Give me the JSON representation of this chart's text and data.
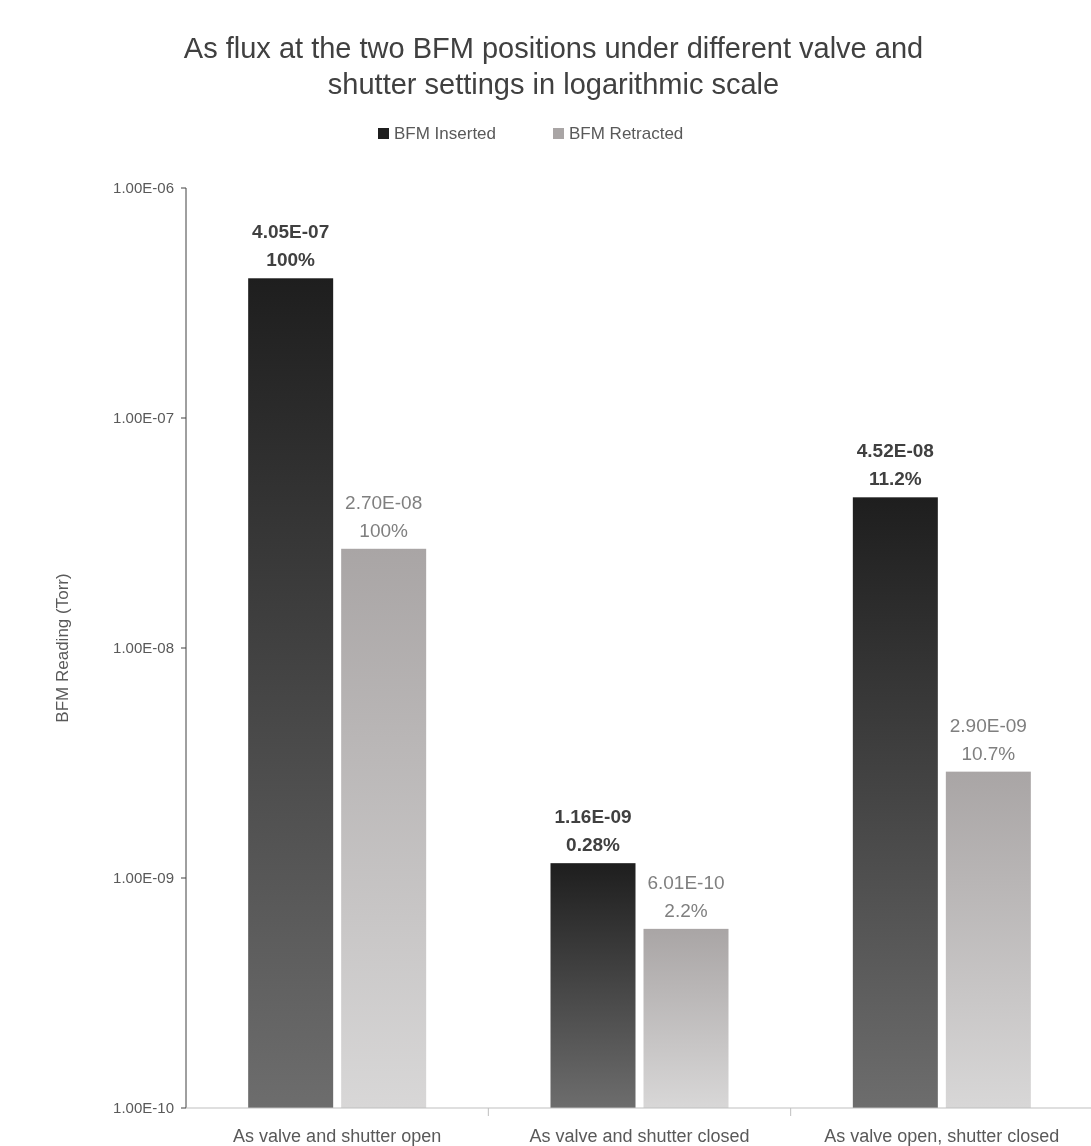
{
  "chart_data": {
    "type": "bar",
    "title": "As flux at the two BFM positions under different valve and shutter settings in logarithmic scale",
    "ylabel": "BFM Reading (Torr)",
    "categories": [
      "As valve and shutter open",
      "As valve and shutter closed",
      "As valve open, shutter closed"
    ],
    "series": [
      {
        "name": "BFM Inserted",
        "color": "#1e1e1e",
        "values": [
          4.05e-07,
          1.16e-09,
          4.52e-08
        ],
        "value_labels": [
          "4.05E-07",
          "1.16E-09",
          "4.52E-08"
        ]
      },
      {
        "name": "BFM Retracted",
        "color": "#a9a5a5",
        "values": [
          2.7e-08,
          6.01e-10,
          2.9e-09
        ],
        "value_labels": [
          "2.70E-08",
          "6.01E-10",
          "2.90E-09"
        ]
      }
    ],
    "annotations": [
      {
        "text": "100%",
        "x": "As valve and shutter open",
        "y": 4.05e-07
      },
      {
        "text": "0.28%",
        "x": "As valve and shutter closed",
        "y": 1.16e-09
      },
      {
        "text": "11.2%",
        "x": "As valve open, shutter closed",
        "y": 4.52e-08
      },
      {
        "text": "100%",
        "x": "As valve and shutter open",
        "y": 2.7e-08
      },
      {
        "text": "2.2%",
        "x": "As valve and shutter closed",
        "y": 6.01e-10
      },
      {
        "text": "10.7%",
        "x": "As valve open, shutter closed",
        "y": 2.9e-09
      }
    ],
    "log": true,
    "ylim": [
      1e-10,
      1e-06
    ],
    "yticks": [
      {
        "value": 1e-10,
        "label": "1.00E-10"
      },
      {
        "value": 1e-09,
        "label": "1.00E-09"
      },
      {
        "value": 1e-08,
        "label": "1.00E-08"
      },
      {
        "value": 1e-07,
        "label": "1.00E-07"
      },
      {
        "value": 1e-06,
        "label": "1.00E-06"
      }
    ],
    "legend": "top",
    "grid": false
  }
}
